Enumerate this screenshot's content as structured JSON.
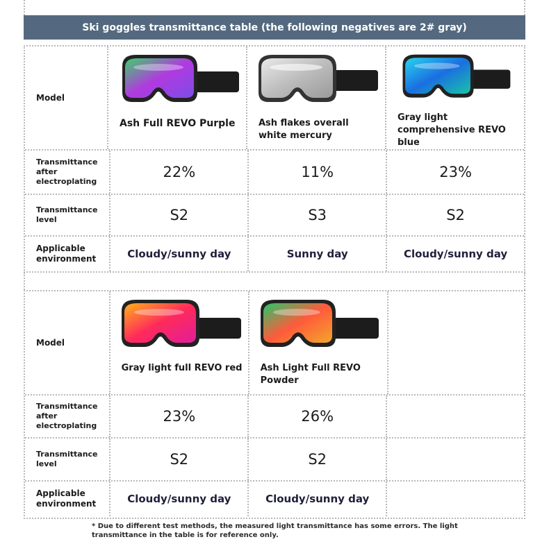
{
  "header": {
    "title": "Ski goggles transmittance table (the following negatives are 2# gray)"
  },
  "labels": {
    "model": "Model",
    "transmittance": "Transmittance after electroplating",
    "level": "Transmittance level",
    "environment": "Applicable environment"
  },
  "table1": [
    {
      "name": "Ash Full REVO Purple",
      "transmittance": "22%",
      "level": "S2",
      "environment": "Cloudy/sunny day"
    },
    {
      "name": "Ash flakes overall white mercury",
      "transmittance": "11%",
      "level": "S3",
      "environment": "Sunny day"
    },
    {
      "name": "Gray light comprehensive REVO blue",
      "transmittance": "23%",
      "level": "S2",
      "environment": "Cloudy/sunny day"
    }
  ],
  "table2": [
    {
      "name": "Gray light full REVO red",
      "transmittance": "23%",
      "level": "S2",
      "environment": "Cloudy/sunny day"
    },
    {
      "name": "Ash Light Full REVO Powder",
      "transmittance": "26%",
      "level": "S2",
      "environment": "Cloudy/sunny day"
    }
  ],
  "lens_colors": {
    "purple": [
      "#3fd06a",
      "#b03ae0",
      "#7c4de6"
    ],
    "mercury": [
      "#e9e9e9",
      "#bdbdbd",
      "#9a9a9a"
    ],
    "blue": [
      "#2ad3f0",
      "#1a6fe0",
      "#19c3a8"
    ],
    "red": [
      "#ffb21a",
      "#ff2a5b",
      "#e01e9a"
    ],
    "powder": [
      "#26c86a",
      "#ff5a3c",
      "#f2a62a"
    ]
  },
  "footnote": "* Due to different test methods, the measured light transmittance has some errors. The light transmittance in the table is for reference only."
}
